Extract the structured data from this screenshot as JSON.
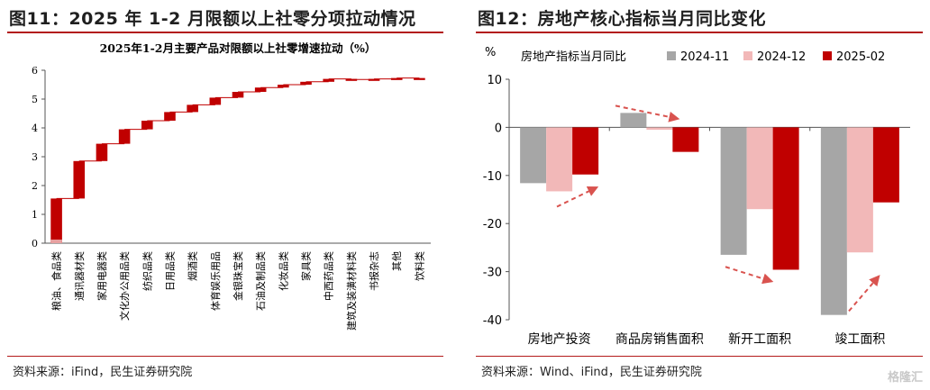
{
  "left": {
    "title": "图11：2025 年 1-2 月限额以上社零分项拉动情况",
    "source": "资料来源：iFind，民生证券研究院"
  },
  "right": {
    "title": "图12：房地产核心指标当月同比变化",
    "source": "资料来源：Wind、iFind，民生证券研究院"
  },
  "watermark": "格隆汇",
  "chart_data": [
    {
      "type": "bar",
      "subtype": "waterfall",
      "title": "2025年1-2月主要产品对限额以上社零增速拉动（%）",
      "categories": [
        "粮油、食品类",
        "通讯器材类",
        "家用电器类",
        "文化办公用品类",
        "纺织品类",
        "日用品类",
        "烟酒类",
        "体育娱乐用品",
        "金银珠宝类",
        "石油及制品类",
        "化妆品类",
        "家具类",
        "中西药品类",
        "建筑及装潢材料类",
        "书报杂志",
        "其他",
        "饮料类"
      ],
      "values": [
        1.55,
        1.3,
        0.6,
        0.5,
        0.3,
        0.3,
        0.25,
        0.25,
        0.2,
        0.15,
        0.1,
        0.1,
        0.1,
        -0.02,
        0.02,
        0.03,
        -0.05
      ],
      "ylim": [
        0,
        6
      ],
      "yticks": [
        "0",
        "1",
        "2",
        "3",
        "4",
        "5",
        "6"
      ],
      "grid": false,
      "colors": {
        "bar": "#c00000",
        "first_bar_base": "#e8a0a0",
        "connector": "#c00000"
      }
    },
    {
      "type": "bar",
      "ylabel": "%",
      "legend_title": "房地产指标当月同比",
      "legend_position": "top",
      "categories": [
        "房地产投资",
        "商品房销售面积",
        "新开工面积",
        "竣工面积"
      ],
      "series": [
        {
          "name": "2024-11",
          "color": "#a6a6a6",
          "values": [
            -11.6,
            3.0,
            -26.5,
            -39.0
          ]
        },
        {
          "name": "2024-12",
          "color": "#f2b8b8",
          "values": [
            -13.3,
            -0.5,
            -17.0,
            -26.0
          ]
        },
        {
          "name": "2025-02",
          "color": "#c00000",
          "values": [
            -9.8,
            -5.1,
            -29.6,
            -15.6
          ]
        }
      ],
      "ylim": [
        -40,
        10
      ],
      "yticks": [
        "10",
        "0",
        "-10",
        "-20",
        "-30",
        "-40"
      ],
      "grid": false,
      "annotations": "red dashed arrows"
    }
  ]
}
